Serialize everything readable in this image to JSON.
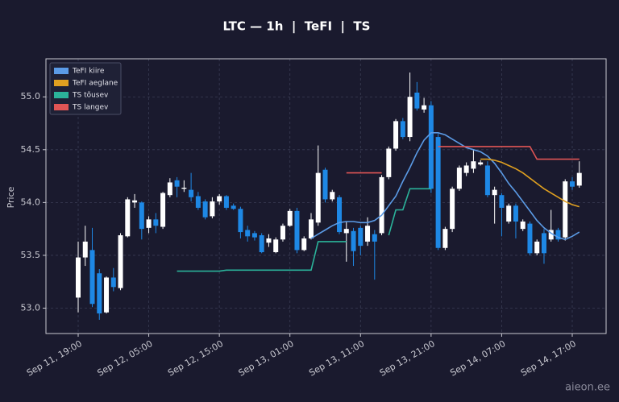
{
  "chart_data": {
    "type": "candlestick",
    "title": "LTC — 1h  |  TeFI  |  TS",
    "ylabel": "Price",
    "watermark": "aieon.ee",
    "categories": [
      "Sep 11, 19:00",
      null,
      null,
      null,
      null,
      null,
      null,
      null,
      null,
      null,
      "Sep 12, 05:00",
      null,
      null,
      null,
      null,
      null,
      null,
      null,
      null,
      null,
      "Sep 12, 15:00",
      null,
      null,
      null,
      null,
      null,
      null,
      null,
      null,
      null,
      "Sep 13, 01:00",
      null,
      null,
      null,
      null,
      null,
      null,
      null,
      null,
      null,
      "Sep 13, 11:00",
      null,
      null,
      null,
      null,
      null,
      null,
      null,
      null,
      null,
      "Sep 13, 21:00",
      null,
      null,
      null,
      null,
      null,
      null,
      null,
      null,
      null,
      "Sep 14, 07:00",
      null,
      null,
      null,
      null,
      null,
      null,
      null,
      null,
      null,
      "Sep 14, 17:00",
      null
    ],
    "open": [
      53.1,
      53.48,
      53.55,
      53.33,
      52.96,
      53.29,
      53.19,
      53.68,
      54.0,
      54.0,
      53.76,
      53.84,
      53.77,
      54.07,
      54.21,
      54.13,
      54.12,
      54.06,
      54.01,
      53.87,
      54.01,
      54.06,
      53.97,
      53.94,
      53.74,
      53.71,
      53.69,
      53.62,
      53.53,
      53.65,
      53.78,
      53.92,
      53.55,
      53.66,
      53.81,
      54.31,
      54.03,
      54.05,
      53.71,
      53.73,
      53.76,
      53.63,
      53.7,
      53.71,
      54.24,
      54.51,
      54.77,
      54.62,
      55.04,
      54.88,
      54.92,
      54.62,
      53.57,
      53.75,
      54.13,
      54.28,
      54.32,
      54.36,
      54.35,
      54.07,
      54.07,
      53.82,
      53.97,
      53.75,
      53.8,
      53.52,
      53.71,
      53.65,
      53.74,
      53.67,
      54.2,
      54.16
    ],
    "high": [
      53.63,
      53.78,
      53.76,
      53.37,
      53.3,
      53.38,
      53.71,
      54.05,
      54.08,
      54.01,
      53.87,
      53.9,
      54.1,
      54.23,
      54.24,
      54.21,
      54.28,
      54.1,
      54.03,
      54.05,
      54.08,
      54.07,
      53.99,
      53.96,
      53.78,
      53.73,
      53.71,
      53.7,
      53.67,
      53.8,
      53.94,
      53.95,
      53.68,
      53.9,
      54.54,
      54.33,
      54.12,
      54.07,
      53.82,
      53.76,
      53.78,
      53.86,
      53.74,
      54.26,
      54.53,
      54.79,
      54.8,
      55.23,
      55.14,
      54.99,
      54.96,
      54.65,
      53.77,
      54.15,
      54.35,
      54.38,
      54.5,
      54.4,
      54.39,
      54.15,
      54.09,
      53.99,
      53.99,
      53.84,
      53.82,
      53.65,
      53.75,
      53.93,
      53.76,
      54.22,
      54.24,
      54.39
    ],
    "low": [
      52.96,
      53.4,
      53.01,
      52.89,
      52.95,
      53.16,
      53.17,
      53.67,
      53.95,
      53.65,
      53.71,
      53.71,
      53.75,
      54.05,
      54.05,
      54.1,
      54.01,
      53.93,
      53.84,
      53.85,
      53.98,
      53.93,
      53.93,
      53.66,
      53.63,
      53.64,
      53.52,
      53.58,
      53.52,
      53.63,
      53.77,
      53.52,
      53.54,
      53.65,
      53.78,
      54.0,
      54.01,
      53.7,
      53.44,
      53.4,
      53.5,
      53.59,
      53.27,
      53.69,
      54.22,
      54.49,
      54.6,
      54.58,
      54.87,
      54.85,
      54.09,
      53.55,
      53.55,
      53.72,
      54.11,
      54.25,
      54.28,
      54.35,
      54.05,
      53.8,
      53.68,
      53.8,
      53.66,
      53.73,
      53.5,
      53.5,
      53.42,
      53.63,
      53.63,
      53.64,
      54.12,
      54.14
    ],
    "close": [
      53.48,
      53.63,
      53.04,
      52.95,
      53.29,
      53.2,
      53.69,
      54.03,
      54.02,
      53.75,
      53.84,
      53.78,
      54.09,
      54.19,
      54.15,
      54.14,
      54.05,
      53.95,
      53.86,
      54.01,
      54.06,
      53.95,
      53.94,
      53.72,
      53.68,
      53.67,
      53.53,
      53.66,
      53.65,
      53.78,
      53.92,
      53.55,
      53.66,
      53.84,
      54.28,
      54.03,
      54.1,
      53.72,
      53.75,
      53.54,
      53.59,
      53.78,
      53.63,
      54.24,
      54.51,
      54.77,
      54.62,
      55.0,
      54.89,
      54.92,
      54.13,
      53.57,
      53.75,
      54.13,
      54.33,
      54.35,
      54.39,
      54.38,
      54.07,
      54.12,
      53.95,
      53.97,
      53.82,
      53.82,
      53.52,
      53.63,
      53.52,
      53.74,
      53.65,
      54.2,
      54.15,
      54.28
    ],
    "up_color": "#ffffff",
    "down_color": "#1e88e5",
    "series": [
      {
        "name": "TeFI kiire",
        "color": "#5b9be6",
        "values": [
          null,
          null,
          null,
          null,
          null,
          null,
          null,
          null,
          null,
          null,
          null,
          null,
          null,
          null,
          null,
          null,
          null,
          null,
          null,
          null,
          null,
          null,
          null,
          null,
          null,
          null,
          null,
          null,
          null,
          null,
          null,
          null,
          null,
          53.66,
          53.7,
          53.74,
          53.78,
          53.81,
          53.82,
          53.82,
          53.81,
          53.81,
          53.83,
          53.88,
          53.97,
          54.06,
          54.2,
          54.33,
          54.47,
          54.59,
          54.66,
          54.66,
          54.64,
          54.6,
          54.56,
          54.52,
          54.5,
          54.48,
          54.44,
          54.37,
          54.28,
          54.18,
          54.1,
          54.01,
          53.92,
          53.83,
          53.76,
          53.71,
          53.67,
          53.65,
          53.68,
          53.72
        ]
      },
      {
        "name": "TeFI aeglane",
        "color": "#e0a020",
        "values": [
          null,
          null,
          null,
          null,
          null,
          null,
          null,
          null,
          null,
          null,
          null,
          null,
          null,
          null,
          null,
          null,
          null,
          null,
          null,
          null,
          null,
          null,
          null,
          null,
          null,
          null,
          null,
          null,
          null,
          null,
          null,
          null,
          null,
          null,
          null,
          null,
          null,
          null,
          null,
          null,
          null,
          null,
          null,
          null,
          null,
          null,
          null,
          null,
          null,
          null,
          null,
          null,
          null,
          null,
          null,
          null,
          null,
          54.41,
          54.41,
          54.4,
          54.38,
          54.35,
          54.32,
          54.28,
          54.23,
          54.18,
          54.13,
          54.09,
          54.05,
          54.01,
          53.98,
          53.96
        ]
      },
      {
        "name": "TS tõusev",
        "color": "#2bb39a",
        "values": [
          null,
          null,
          null,
          null,
          null,
          null,
          null,
          null,
          null,
          null,
          null,
          null,
          null,
          null,
          53.35,
          53.35,
          53.35,
          53.35,
          53.35,
          53.35,
          53.35,
          53.36,
          53.36,
          53.36,
          53.36,
          53.36,
          53.36,
          53.36,
          53.36,
          53.36,
          53.36,
          53.36,
          53.36,
          53.36,
          53.63,
          53.63,
          53.63,
          53.63,
          53.63,
          null,
          null,
          null,
          null,
          null,
          53.69,
          53.93,
          53.93,
          54.13,
          54.13,
          54.13,
          54.13,
          null,
          null,
          null,
          null,
          null,
          null,
          null,
          null,
          null,
          null,
          null,
          null,
          null,
          null,
          null,
          null,
          null,
          null,
          null,
          null,
          null
        ]
      },
      {
        "name": "TS langev",
        "color": "#e05555",
        "values": [
          null,
          null,
          null,
          null,
          null,
          null,
          null,
          null,
          null,
          null,
          null,
          null,
          null,
          null,
          null,
          null,
          null,
          null,
          null,
          null,
          null,
          null,
          null,
          null,
          null,
          null,
          null,
          null,
          null,
          null,
          null,
          null,
          null,
          null,
          null,
          null,
          null,
          null,
          54.28,
          54.28,
          54.28,
          54.28,
          54.28,
          54.28,
          null,
          null,
          null,
          null,
          null,
          null,
          null,
          54.53,
          54.53,
          54.53,
          54.53,
          54.53,
          54.53,
          54.53,
          54.53,
          54.53,
          54.53,
          54.53,
          54.53,
          54.53,
          54.53,
          54.41,
          54.41,
          54.41,
          54.41,
          54.41,
          54.41,
          54.41
        ]
      }
    ],
    "ylim": [
      52.76,
      55.36
    ],
    "yticks": [
      {
        "value": 53,
        "label": "53.0"
      },
      53.5,
      {
        "value": 54,
        "label": "54.0"
      },
      54.5,
      {
        "value": 55,
        "label": "55.0"
      }
    ],
    "grid": true,
    "legend": "upper left"
  }
}
